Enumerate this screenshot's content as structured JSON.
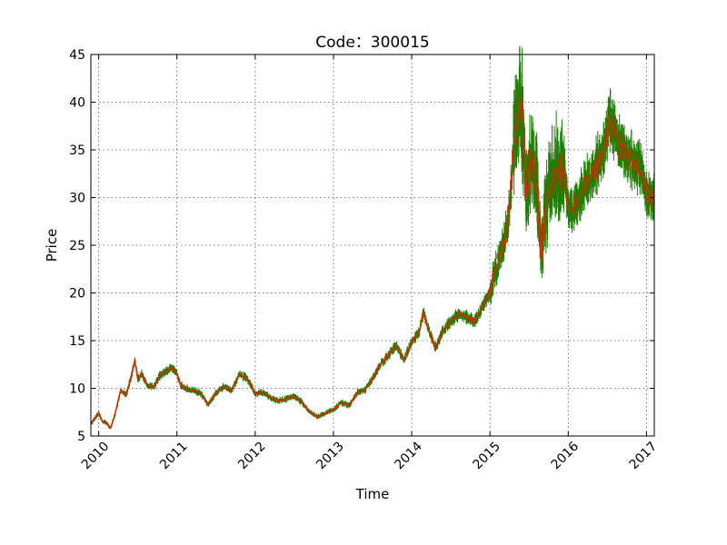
{
  "chart_data": {
    "type": "line",
    "subtype": "candlestick",
    "title": "Code：300015",
    "xlabel": "Time",
    "ylabel": "Price",
    "xlim": [
      2009.9,
      2017.1
    ],
    "ylim": [
      5,
      45
    ],
    "x_ticks": [
      2010,
      2011,
      2012,
      2013,
      2014,
      2015,
      2016,
      2017
    ],
    "x_tick_labels": [
      "2010",
      "2011",
      "2012",
      "2013",
      "2014",
      "2015",
      "2016",
      "2017"
    ],
    "y_ticks": [
      5,
      10,
      15,
      20,
      25,
      30,
      35,
      40,
      45
    ],
    "y_tick_labels": [
      "5",
      "10",
      "15",
      "20",
      "25",
      "30",
      "35",
      "40",
      "45"
    ],
    "grid": true,
    "colors": {
      "up": "#d62a00",
      "down": "#1a8000"
    },
    "series": [
      {
        "x": [
          2009.9,
          2010.0,
          2010.05,
          2010.1,
          2010.15,
          2010.2,
          2010.28,
          2010.35,
          2010.42,
          2010.46,
          2010.5,
          2010.55,
          2010.62,
          2010.7,
          2010.78,
          2010.86,
          2010.94,
          2011.0,
          2011.05,
          2011.1,
          2011.2,
          2011.3,
          2011.4,
          2011.5,
          2011.6,
          2011.7,
          2011.8,
          2011.9,
          2012.0,
          2012.1,
          2012.2,
          2012.3,
          2012.4,
          2012.5,
          2012.6,
          2012.7,
          2012.8,
          2012.9,
          2013.0,
          2013.1,
          2013.2,
          2013.3,
          2013.4,
          2013.5,
          2013.6,
          2013.7,
          2013.8,
          2013.9,
          2014.0,
          2014.1,
          2014.15,
          2014.2,
          2014.25,
          2014.3,
          2014.4,
          2014.5,
          2014.6,
          2014.7,
          2014.8,
          2014.9,
          2015.0,
          2015.05,
          2015.1,
          2015.2,
          2015.25,
          2015.3,
          2015.35,
          2015.4,
          2015.43,
          2015.46,
          2015.5,
          2015.55,
          2015.6,
          2015.63,
          2015.66,
          2015.7,
          2015.75,
          2015.8,
          2015.85,
          2015.9,
          2015.95,
          2016.0,
          2016.05,
          2016.1,
          2016.2,
          2016.3,
          2016.35,
          2016.4,
          2016.45,
          2016.5,
          2016.52,
          2016.55,
          2016.6,
          2016.65,
          2016.7,
          2016.75,
          2016.8,
          2016.85,
          2016.9,
          2016.95,
          2017.0,
          2017.05,
          2017.1
        ],
        "y": [
          6.3,
          7.4,
          6.5,
          6.4,
          5.8,
          7.0,
          9.8,
          9.3,
          11.3,
          13.0,
          11.0,
          11.5,
          10.3,
          10.1,
          11.3,
          11.8,
          12.2,
          11.5,
          10.3,
          10.0,
          9.8,
          9.5,
          8.3,
          9.5,
          10.2,
          9.8,
          11.5,
          11.0,
          9.4,
          9.6,
          9.0,
          8.7,
          8.9,
          9.2,
          8.5,
          7.5,
          7.0,
          7.4,
          7.8,
          8.5,
          8.2,
          9.5,
          9.8,
          11.0,
          12.5,
          13.5,
          14.5,
          13.0,
          14.8,
          16.0,
          18.0,
          16.5,
          15.5,
          14.2,
          16.0,
          17.0,
          17.8,
          17.5,
          17.0,
          18.5,
          20.0,
          22.0,
          23.0,
          26.0,
          29.0,
          35.0,
          38.0,
          40.0,
          36.0,
          30.0,
          32.0,
          34.0,
          31.0,
          28.0,
          24.0,
          28.0,
          30.0,
          32.0,
          33.0,
          32.0,
          33.0,
          29.0,
          28.5,
          29.5,
          31.0,
          32.5,
          33.0,
          34.0,
          34.5,
          36.5,
          38.5,
          37.5,
          37.0,
          35.5,
          35.5,
          34.5,
          34.0,
          33.5,
          33.0,
          32.5,
          30.5,
          29.8,
          30.5
        ]
      }
    ]
  }
}
